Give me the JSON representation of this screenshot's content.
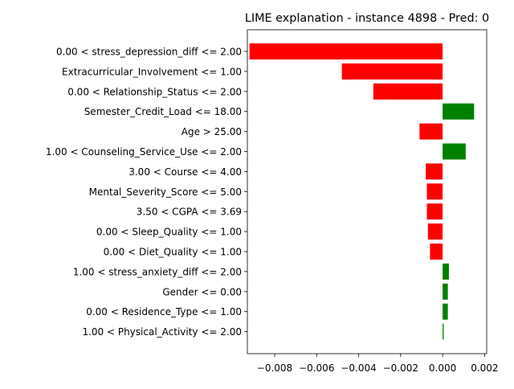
{
  "chart_data": {
    "type": "bar",
    "orientation": "horizontal",
    "title": "LIME explanation - instance 4898 - Pred: 0",
    "xlabel": "",
    "ylabel": "",
    "xlim": [
      -0.0093,
      0.0021
    ],
    "xticks": [
      {
        "value": -0.008,
        "label": "−0.008"
      },
      {
        "value": -0.006,
        "label": "−0.006"
      },
      {
        "value": -0.004,
        "label": "−0.004"
      },
      {
        "value": -0.002,
        "label": "−0.002"
      },
      {
        "value": 0.0,
        "label": "0.000"
      },
      {
        "value": 0.002,
        "label": "0.002"
      }
    ],
    "grid": false,
    "legend": "none",
    "colors": {
      "negative": "#ff0000",
      "positive": "#008000"
    },
    "categories": [
      "0.00 < stress_depression_diff <= 2.00",
      "Extracurricular_Involvement <= 1.00",
      "0.00 < Relationship_Status <= 2.00",
      "Semester_Credit_Load <= 18.00",
      "Age > 25.00",
      "1.00 < Counseling_Service_Use <= 2.00",
      "3.00 < Course <= 4.00",
      "Mental_Severity_Score <= 5.00",
      "3.50 < CGPA <= 3.69",
      "0.00 < Sleep_Quality <= 1.00",
      "0.00 < Diet_Quality <= 1.00",
      "1.00 < stress_anxiety_diff <= 2.00",
      "Gender <= 0.00",
      "0.00 < Residence_Type <= 1.00",
      "1.00 < Physical_Activity <= 2.00"
    ],
    "values": [
      -0.0092,
      -0.0048,
      -0.0033,
      0.0015,
      -0.0011,
      0.0011,
      -0.0008,
      -0.00075,
      -0.00075,
      -0.0007,
      -0.0006,
      0.0003,
      0.00025,
      0.00025,
      5e-05
    ]
  }
}
